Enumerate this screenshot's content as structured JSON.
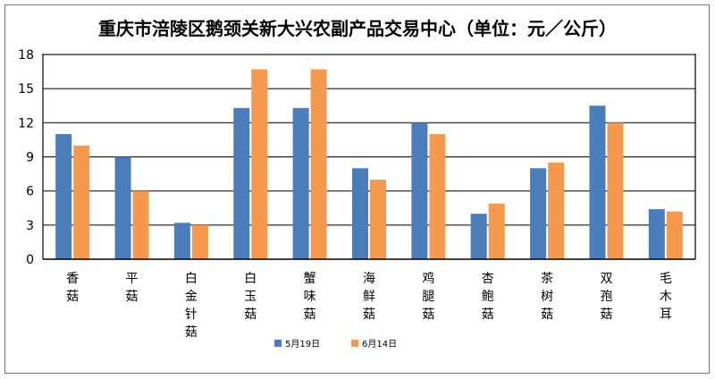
{
  "chart_data": {
    "type": "bar",
    "title": "重庆市涪陵区鹅颈关新大兴农副产品交易中心（单位：元／公斤）",
    "xlabel": "",
    "ylabel": "",
    "ylim": [
      0,
      18
    ],
    "yticks": [
      "0",
      "3",
      "6",
      "9",
      "12",
      "15",
      "18"
    ],
    "grid": true,
    "legend_position": "bottom-center",
    "categories": [
      "香菇",
      "平菇",
      "白金针菇",
      "白玉菇",
      "蟹味菇",
      "海鲜菇",
      "鸡腿菇",
      "杏鲍菇",
      "茶树菇",
      "双孢菇",
      "毛木耳"
    ],
    "series": [
      {
        "name": "5月19日",
        "color": "#4a7ebb",
        "values": [
          11,
          9,
          3.2,
          13.3,
          13.3,
          8,
          12,
          4,
          8,
          13.5,
          4.4
        ]
      },
      {
        "name": "6月14日",
        "color": "#f59a4c",
        "values": [
          10,
          6,
          3,
          16.7,
          16.7,
          7,
          11,
          4.9,
          8.5,
          12,
          4.2
        ]
      }
    ]
  }
}
